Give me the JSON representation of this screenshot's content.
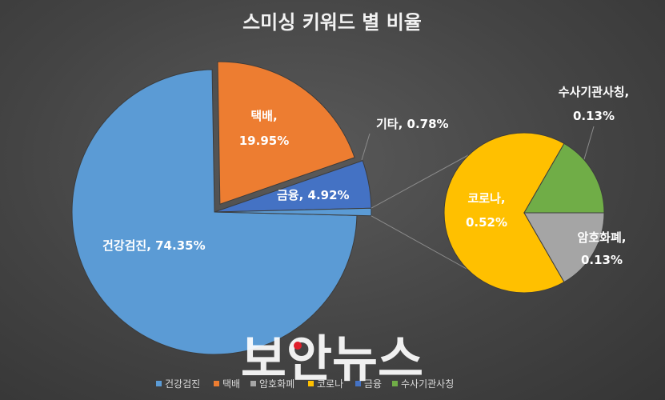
{
  "chart_data": {
    "type": "pie",
    "title": "스미싱 키워드 별 비율",
    "slices": [
      {
        "name": "건강검진",
        "value": 74.35,
        "label": "건강검진, 74.35%",
        "color": "#5b9bd5"
      },
      {
        "name": "택배",
        "value": 19.95,
        "label_line1": "택배,",
        "label_line2": "19.95%",
        "color": "#ed7d31"
      },
      {
        "name": "금융",
        "value": 4.92,
        "label": "금융, 4.92%",
        "color": "#4472c4"
      },
      {
        "name": "기타",
        "value": 0.78,
        "label": "기타, 0.78%",
        "color": "#5b9bd5"
      }
    ],
    "sub_pie": {
      "of": "기타",
      "slices": [
        {
          "name": "코로나",
          "value": 0.52,
          "label_line1": "코로나,",
          "label_line2": "0.52%",
          "color": "#ffc000"
        },
        {
          "name": "수사기관사칭",
          "value": 0.13,
          "label_line1": "수사기관사칭,",
          "label_line2": "0.13%",
          "color": "#70ad47"
        },
        {
          "name": "암호화폐",
          "value": 0.13,
          "label_line1": "암호화폐,",
          "label_line2": "0.13%",
          "color": "#a5a5a5"
        }
      ]
    },
    "legend": {
      "position": "bottom",
      "entries": [
        {
          "name": "건강검진",
          "color": "#5b9bd5"
        },
        {
          "name": "택배",
          "color": "#ed7d31"
        },
        {
          "name": "암호화폐",
          "color": "#a5a5a5"
        },
        {
          "name": "코로나",
          "color": "#ffc000"
        },
        {
          "name": "금융",
          "color": "#4472c4"
        },
        {
          "name": "수사기관사칭",
          "color": "#70ad47"
        }
      ]
    }
  },
  "watermark": "보안뉴스"
}
